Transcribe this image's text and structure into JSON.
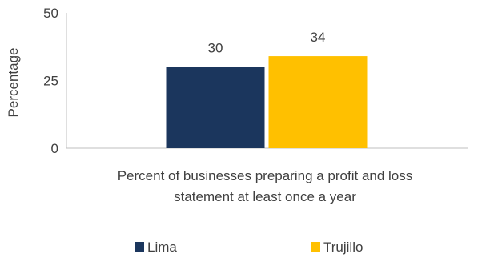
{
  "chart_data": {
    "type": "bar",
    "categories": [
      "Percent of businesses preparing a profit and loss statement at least once a year"
    ],
    "category_label_lines": [
      "Percent of businesses preparing a profit and loss",
      "statement at least once a year"
    ],
    "series": [
      {
        "name": "Lima",
        "values": [
          30
        ],
        "color": "#1b365d"
      },
      {
        "name": "Trujillo",
        "values": [
          34
        ],
        "color": "#ffc000"
      }
    ],
    "ylabel": "Percentage",
    "xlabel": "",
    "ylim": [
      0,
      50
    ],
    "yticks": [
      0,
      25,
      50
    ],
    "grid": false,
    "legend": "bottom"
  }
}
